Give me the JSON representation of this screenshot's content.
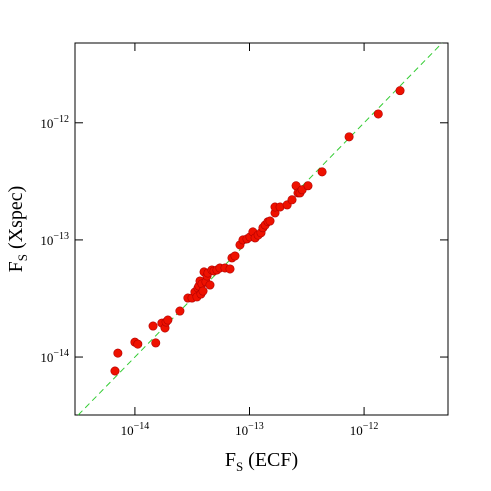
{
  "chart_data": {
    "type": "scatter",
    "x_label": "FS (ECF)",
    "y_label": "FS (Xspec)",
    "log_scale": true,
    "color": "#ee1100",
    "xlim": [
      3e-15,
      5.4e-12
    ],
    "ylim": [
      3.2e-15,
      4.8e-12
    ],
    "xticks": [
      {
        "value": 1e-14,
        "label": "10−14"
      },
      {
        "value": 1e-13,
        "label": "10−13"
      },
      {
        "value": 1e-12,
        "label": "10−12"
      }
    ],
    "yticks": [
      {
        "value": 1e-14,
        "label": "10−14"
      },
      {
        "value": 1e-13,
        "label": "10−13"
      },
      {
        "value": 1e-12,
        "label": "10−12"
      }
    ],
    "x": [
      6.7e-15,
      7.1e-15,
      1e-14,
      1.06e-14,
      1.44e-14,
      1.52e-14,
      1.72e-14,
      1.83e-14,
      1.87e-14,
      1.94e-14,
      2.47e-14,
      2.9e-14,
      3.15e-14,
      3.34e-14,
      3.48e-14,
      3.55e-14,
      3.62e-14,
      3.7e-14,
      3.77e-14,
      3.85e-14,
      3.93e-14,
      4.01e-14,
      4.17e-14,
      4.26e-14,
      4.34e-14,
      4.52e-14,
      4.7e-14,
      4.9e-14,
      5.2e-14,
      5.52e-14,
      6.11e-14,
      6.76e-14,
      7.03e-14,
      7.47e-14,
      8.26e-14,
      8.77e-14,
      9.51e-14,
      1.01e-13,
      1.07e-13,
      1.12e-13,
      1.19e-13,
      1.26e-13,
      1.31e-13,
      1.37e-13,
      1.45e-13,
      1.51e-13,
      1.67e-13,
      1.67e-13,
      1.85e-13,
      2.13e-13,
      2.35e-13,
      2.55e-13,
      2.65e-13,
      2.76e-13,
      2.88e-13,
      3.24e-13,
      4.3e-13,
      7.4e-13,
      1.33e-12,
      2.06e-12
    ],
    "y": [
      7.6e-15,
      1.08e-14,
      1.34e-14,
      1.29e-14,
      1.84e-14,
      1.32e-14,
      1.95e-14,
      1.77e-14,
      1.99e-14,
      2.07e-14,
      2.47e-14,
      3.19e-14,
      3.19e-14,
      3.59e-14,
      3.26e-14,
      3.89e-14,
      4.04e-14,
      4.46e-14,
      3.45e-14,
      4.21e-14,
      3.66e-14,
      5.33e-14,
      4.38e-14,
      4.92e-14,
      5.22e-14,
      4.12e-14,
      5.54e-14,
      5.43e-14,
      5.54e-14,
      5.76e-14,
      5.76e-14,
      5.65e-14,
      7.02e-14,
      7.29e-14,
      9.06e-14,
      1e-13,
      1.02e-13,
      1.06e-13,
      1.17e-13,
      1.04e-13,
      1.1e-13,
      1.15e-13,
      1.27e-13,
      1.34e-13,
      1.43e-13,
      1.45e-13,
      1.7e-13,
      1.91e-13,
      1.91e-13,
      1.99e-13,
      2.2e-13,
      2.9e-13,
      2.52e-13,
      2.52e-13,
      2.68e-13,
      2.9e-13,
      3.81e-13,
      7.59e-13,
      1.19e-12,
      1.88e-12
    ]
  }
}
